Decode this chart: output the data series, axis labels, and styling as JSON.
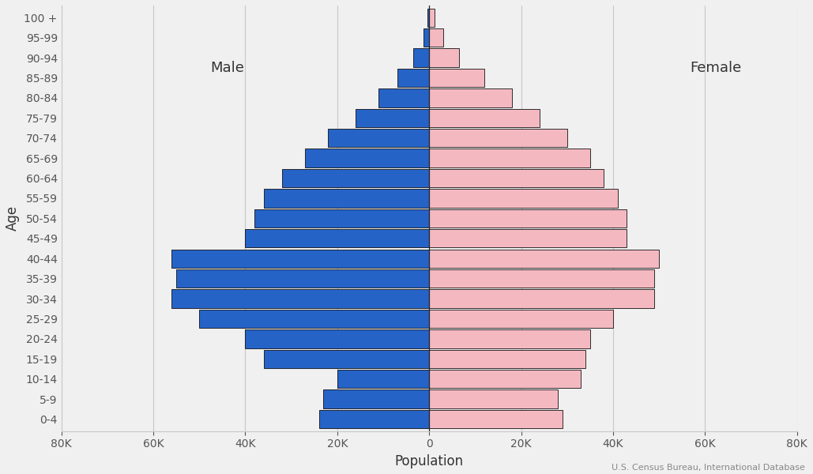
{
  "age_groups": [
    "0-4",
    "5-9",
    "10-14",
    "15-19",
    "20-24",
    "25-29",
    "30-34",
    "35-39",
    "40-44",
    "45-49",
    "50-54",
    "55-59",
    "60-64",
    "65-69",
    "70-74",
    "75-79",
    "80-84",
    "85-89",
    "90-94",
    "95-99",
    "100 +"
  ],
  "male": [
    24000,
    23000,
    20000,
    36000,
    40000,
    50000,
    56000,
    55000,
    56000,
    40000,
    38000,
    36000,
    32000,
    27000,
    22000,
    16000,
    11000,
    7000,
    3500,
    1200,
    300
  ],
  "female": [
    29000,
    28000,
    33000,
    34000,
    35000,
    40000,
    49000,
    49000,
    50000,
    43000,
    43000,
    41000,
    38000,
    35000,
    30000,
    24000,
    18000,
    12000,
    6500,
    3000,
    1200
  ],
  "male_color": "#2563c7",
  "female_color": "#f4b8c1",
  "bar_edgecolor": "#111111",
  "background_color": "#f0f0f0",
  "xlabel": "Population",
  "ylabel": "Age",
  "xlim": 80000,
  "xtick_step": 20000,
  "male_label": "Male",
  "female_label": "Female",
  "source_text": "U.S. Census Bureau, International Database",
  "grid_color": "#c8c8c8",
  "label_fontsize": 13,
  "tick_fontsize": 10,
  "axis_label_fontsize": 12
}
